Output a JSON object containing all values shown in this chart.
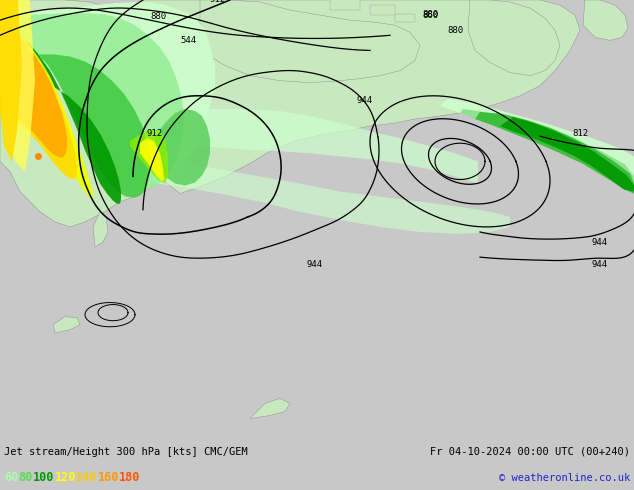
{
  "title_left": "Jet stream/Height 300 hPa [kts] CMC/GEM",
  "title_right": "Fr 04-10-2024 00:00 UTC (00+240)",
  "copyright": "© weatheronline.co.uk",
  "legend_values": [
    "60",
    "80",
    "100",
    "120",
    "140",
    "160",
    "180"
  ],
  "legend_colors": [
    "#aaffaa",
    "#55dd55",
    "#009900",
    "#ffff00",
    "#ffcc00",
    "#ff9900",
    "#ff5500"
  ],
  "map_bg_color": "#e0e0e0",
  "land_color": "#c8e8c0",
  "land_border_color": "#999999",
  "bottom_bar_color": "#e8e8e8",
  "fig_bg_color": "#c8c8c8",
  "jet_colors": [
    "#ccffcc",
    "#88ee88",
    "#33cc33",
    "#009900",
    "#ffff44",
    "#ffcc00",
    "#ff9900"
  ],
  "jet_levels": [
    50,
    60,
    80,
    100,
    120,
    140,
    160
  ]
}
